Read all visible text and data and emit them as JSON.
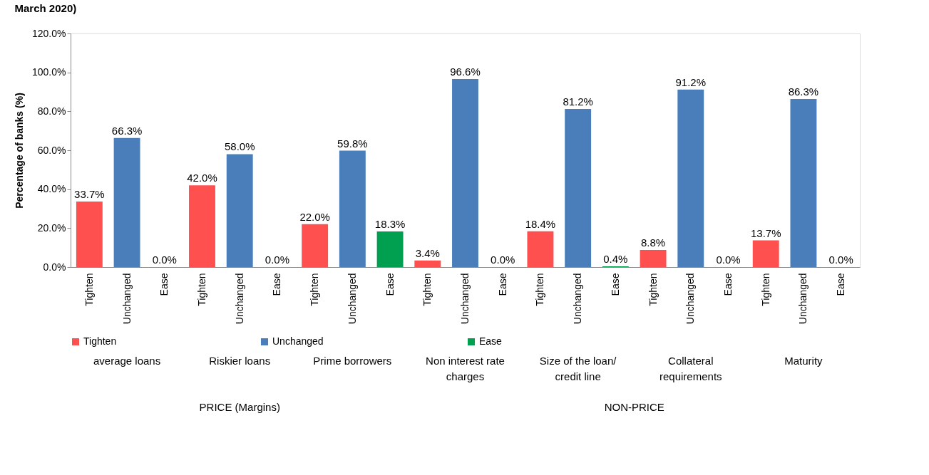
{
  "chart_data": {
    "type": "bar",
    "title": "March 2020)",
    "categories": [
      "Tighten",
      "Unchanged",
      "Ease",
      "Tighten",
      "Unchanged",
      "Ease",
      "Tighten",
      "Unchanged",
      "Ease",
      "Tighten",
      "Unchanged",
      "Ease",
      "Tighten",
      "Unchanged",
      "Ease",
      "Tighten",
      "Unchanged",
      "Ease",
      "Tighten",
      "Unchanged",
      "Ease"
    ],
    "series": [
      {
        "name": "Tighten",
        "color": "#ff5050",
        "values": [
          33.7,
          null,
          null,
          42.0,
          null,
          null,
          22.0,
          null,
          null,
          3.4,
          null,
          null,
          18.4,
          null,
          null,
          8.8,
          null,
          null,
          13.7,
          null,
          null
        ],
        "value_labels": [
          "33.7%",
          null,
          null,
          "42.0%",
          null,
          null,
          "22.0%",
          null,
          null,
          "3.4%",
          null,
          null,
          "18.4%",
          null,
          null,
          "8.8%",
          null,
          null,
          "13.7%",
          null,
          null
        ]
      },
      {
        "name": "Unchanged",
        "color": "#4a7ebb",
        "values": [
          null,
          66.3,
          null,
          null,
          58.0,
          null,
          null,
          59.8,
          null,
          null,
          96.6,
          null,
          null,
          81.2,
          null,
          null,
          91.2,
          null,
          null,
          86.3,
          null
        ],
        "value_labels": [
          null,
          "66.3%",
          null,
          null,
          "58.0%",
          null,
          null,
          "59.8%",
          null,
          null,
          "96.6%",
          null,
          null,
          "81.2%",
          null,
          null,
          "91.2%",
          null,
          null,
          "86.3%",
          null
        ]
      },
      {
        "name": "Ease",
        "color": "#00a050",
        "values": [
          null,
          null,
          0.0,
          null,
          null,
          0.0,
          null,
          null,
          18.3,
          null,
          null,
          0.0,
          null,
          null,
          0.4,
          null,
          null,
          0.0,
          null,
          null,
          0.0
        ],
        "value_labels": [
          null,
          null,
          "0.0%",
          null,
          null,
          "0.0%",
          null,
          null,
          "18.3%",
          null,
          null,
          "0.0%",
          null,
          null,
          "0.4%",
          null,
          null,
          "0.0%",
          null,
          null,
          "0.0%"
        ]
      }
    ],
    "ylabel": "Percentage of banks  (%)",
    "ylim": [
      0,
      120
    ],
    "yticks": [
      {
        "value": 0,
        "label": "0.0%"
      },
      {
        "value": 20,
        "label": "20.0%"
      },
      {
        "value": 40,
        "label": "40.0%"
      },
      {
        "value": 60,
        "label": "60.0%"
      },
      {
        "value": 80,
        "label": "80.0%"
      },
      {
        "value": 100,
        "label": "100.0%"
      },
      {
        "value": 120,
        "label": "120.0%"
      }
    ],
    "annotations": [
      "average loans",
      "Riskier loans",
      "Prime borrowers",
      "Non interest rate\ncharges",
      "Size of the loan/\ncredit line",
      "Collateral\nrequirements",
      "Maturity",
      "PRICE (Margins)",
      "NON-PRICE"
    ],
    "grid": false,
    "legend": "bottom"
  }
}
